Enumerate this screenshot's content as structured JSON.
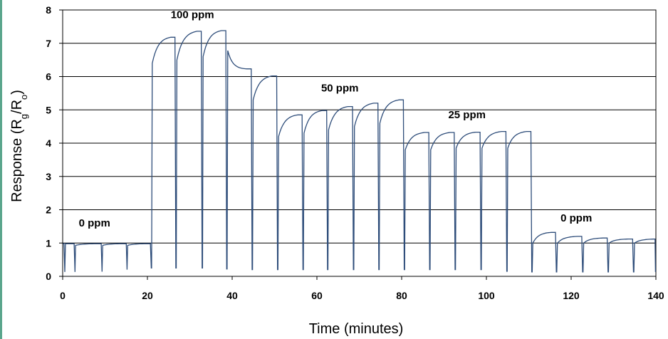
{
  "chart_data": {
    "type": "line",
    "xlabel": "Time (minutes)",
    "ylabel": {
      "pre": "Response (R",
      "sub1": "g",
      "mid": "/R",
      "sub2": "o",
      "post": ")"
    },
    "xlim": [
      0,
      140
    ],
    "ylim": [
      0,
      8
    ],
    "x_ticks": [
      "0",
      "20",
      "40",
      "60",
      "80",
      "100",
      "120",
      "140"
    ],
    "y_ticks": [
      "0",
      "1",
      "2",
      "3",
      "4",
      "5",
      "6",
      "7",
      "8"
    ],
    "grid": "horizontal",
    "line_color": "#2e4d7a",
    "annotations": [
      {
        "text": "0 ppm",
        "x": 3.8,
        "y": 1.5
      },
      {
        "text": "100 ppm",
        "x": 25.5,
        "y": 7.75
      },
      {
        "text": "50 ppm",
        "x": 61,
        "y": 5.55
      },
      {
        "text": "25 ppm",
        "x": 91,
        "y": 4.75
      },
      {
        "text": "0 ppm",
        "x": 117.5,
        "y": 1.65
      }
    ],
    "series": [
      {
        "cycles": [
          {
            "on": 0.3,
            "rise_end": 0.5,
            "peak": 0.98,
            "off": 1.7,
            "base": 0.13,
            "start": 0.98
          },
          {
            "on": 2.7,
            "rise_end": 2.9,
            "peak": 0.98,
            "off": 8.1,
            "base": 0.13,
            "start": 0.93
          },
          {
            "on": 9.1,
            "rise_end": 9.3,
            "peak": 0.98,
            "off": 14.0,
            "base": 0.14,
            "start": 0.93
          },
          {
            "on": 15.0,
            "rise_end": 15.2,
            "peak": 0.98,
            "off": 19.8,
            "base": 0.2,
            "start": 0.93
          },
          {
            "on": 20.7,
            "rise_end": 21.0,
            "peak": 7.18,
            "off": 25.5,
            "base": 0.25,
            "start": 6.4
          },
          {
            "on": 26.5,
            "rise_end": 26.8,
            "peak": 7.36,
            "off": 31.7,
            "base": 0.25,
            "start": 6.5
          },
          {
            "on": 32.7,
            "rise_end": 33.0,
            "peak": 7.38,
            "off": 37.5,
            "base": 0.25,
            "start": 6.6
          },
          {
            "on": 38.5,
            "rise_end": 38.8,
            "peak": 6.22,
            "off": 43.5,
            "base": 0.22,
            "start": 6.78,
            "decay": true
          },
          {
            "on": 44.5,
            "rise_end": 44.8,
            "peak": 6.02,
            "off": 49.5,
            "base": 0.2,
            "start": 5.3
          },
          {
            "on": 50.5,
            "rise_end": 50.8,
            "peak": 4.85,
            "off": 55.5,
            "base": 0.2,
            "start": 4.2
          },
          {
            "on": 56.5,
            "rise_end": 56.8,
            "peak": 4.98,
            "off": 61.3,
            "base": 0.2,
            "start": 4.3
          },
          {
            "on": 62.3,
            "rise_end": 62.6,
            "peak": 5.1,
            "off": 67.4,
            "base": 0.2,
            "start": 4.4
          },
          {
            "on": 68.4,
            "rise_end": 68.7,
            "peak": 5.2,
            "off": 73.4,
            "base": 0.2,
            "start": 4.5
          },
          {
            "on": 74.4,
            "rise_end": 74.7,
            "peak": 5.3,
            "off": 79.4,
            "base": 0.2,
            "start": 4.6
          },
          {
            "on": 80.4,
            "rise_end": 80.7,
            "peak": 4.32,
            "off": 85.4,
            "base": 0.2,
            "start": 3.8
          },
          {
            "on": 86.4,
            "rise_end": 86.7,
            "peak": 4.32,
            "off": 91.4,
            "base": 0.2,
            "start": 3.8
          },
          {
            "on": 92.4,
            "rise_end": 92.7,
            "peak": 4.33,
            "off": 97.5,
            "base": 0.2,
            "start": 3.85
          },
          {
            "on": 98.5,
            "rise_end": 98.8,
            "peak": 4.35,
            "off": 103.6,
            "base": 0.2,
            "start": 3.85
          },
          {
            "on": 104.6,
            "rise_end": 104.9,
            "peak": 4.35,
            "off": 109.5,
            "base": 0.15,
            "start": 3.85
          },
          {
            "on": 110.5,
            "rise_end": 110.8,
            "peak": 1.32,
            "off": 115.3,
            "base": 0.13,
            "start": 1.0
          },
          {
            "on": 116.3,
            "rise_end": 116.6,
            "peak": 1.2,
            "off": 121.5,
            "base": 0.13,
            "start": 1.0
          },
          {
            "on": 122.5,
            "rise_end": 122.8,
            "peak": 1.15,
            "off": 127.5,
            "base": 0.13,
            "start": 1.0
          },
          {
            "on": 128.5,
            "rise_end": 128.8,
            "peak": 1.12,
            "off": 133.5,
            "base": 0.13,
            "start": 1.0
          },
          {
            "on": 134.5,
            "rise_end": 134.8,
            "peak": 1.12,
            "off": 139.7,
            "base": 0.13,
            "start": 1.0
          }
        ]
      }
    ]
  }
}
